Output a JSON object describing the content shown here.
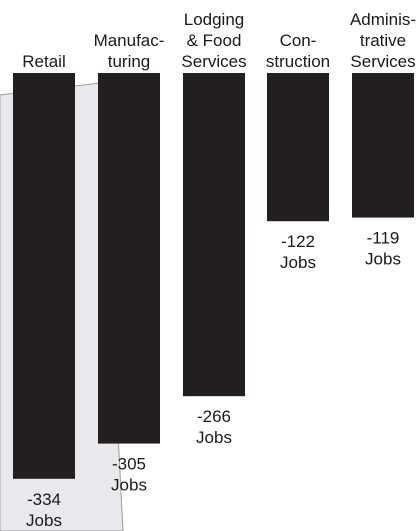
{
  "chart_data": {
    "type": "bar",
    "orientation": "vertical-negative",
    "title": "",
    "xlabel": "",
    "ylabel": "",
    "categories": [
      [
        "Retail"
      ],
      [
        "Manufac-",
        "turing"
      ],
      [
        "Lodging",
        "& Food",
        "Services"
      ],
      [
        "Con-",
        "struction"
      ],
      [
        "Adminis-",
        "trative",
        "Services"
      ]
    ],
    "values": [
      -334,
      -305,
      -266,
      -122,
      -119
    ],
    "value_labels": [
      [
        "-334",
        "Jobs"
      ],
      [
        "-305",
        "Jobs"
      ],
      [
        "-266",
        "Jobs"
      ],
      [
        "-122",
        "Jobs"
      ],
      [
        "-119",
        "Jobs"
      ]
    ],
    "ylim": [
      -334,
      0
    ],
    "colors": {
      "bar": "#231f20",
      "text": "#1a1a1a",
      "panel_fill": "#e9e9ed",
      "panel_stroke": "#9a9aa2"
    }
  }
}
